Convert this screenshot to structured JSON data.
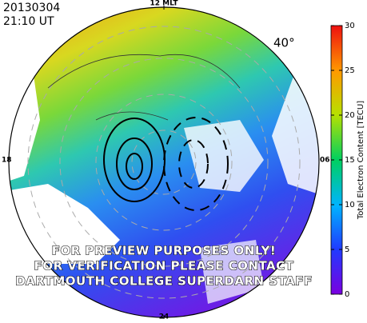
{
  "header": {
    "date": "20130304",
    "time": "21:10 UT"
  },
  "map": {
    "top_label": "12 MLT",
    "left_label": "18",
    "right_label": "06",
    "bottom_label": "24",
    "latitude_label": "40°"
  },
  "colorbar": {
    "label": "Total Electron Content [TECU]",
    "lim": [
      0,
      30
    ],
    "ticks": [
      0,
      5,
      10,
      15,
      20,
      25,
      30
    ]
  },
  "watermark": [
    "FOR PREVIEW PURPOSES ONLY!",
    "FOR VERIFICATION PLEASE CONTACT",
    "DARTMOUTH COLLEGE SUPERDARN STAFF"
  ]
}
